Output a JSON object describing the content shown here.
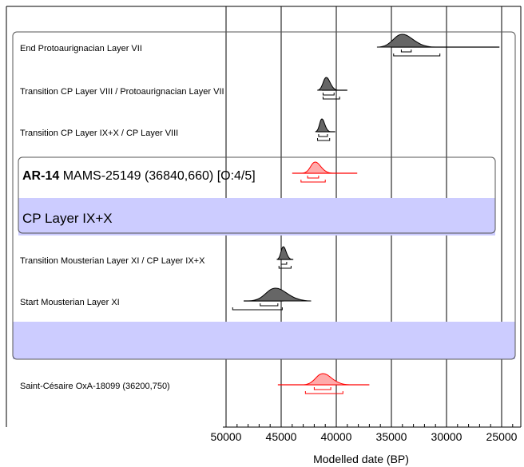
{
  "chart_data": {
    "type": "oxcal-multiplot",
    "xlabel": "Modelled date (BP)",
    "x_ticks": [
      "50000",
      "45000",
      "40000",
      "35000",
      "30000",
      "25000"
    ],
    "x_tick_values": [
      50000,
      45000,
      40000,
      35000,
      30000,
      25000
    ],
    "xlim": [
      50000,
      24000
    ],
    "axis_direction": "descending",
    "colors": {
      "prior": "#000000",
      "posterior_fill": "#666666",
      "highlight": "#ff0000",
      "highlight_fill": "#ffaaaa",
      "band": "#ccccff",
      "frame": "#555555"
    },
    "rows": [
      {
        "label": "End Protoaurignacian Layer VII",
        "kind": "boundary",
        "peak": 34000,
        "tail_from": 35000,
        "tail_to": 25200,
        "range68": [
          34100,
          33200
        ],
        "range95": [
          34800,
          30600
        ]
      },
      {
        "label": "Transition CP Layer VIII / Protoaurignacian Layer VII",
        "kind": "boundary",
        "peak": 40900,
        "tail_from": 41300,
        "tail_to": 39000,
        "range68": [
          41200,
          40200
        ],
        "range95": [
          41200,
          39700
        ]
      },
      {
        "label": "Transition CP Layer IX+X / CP Layer VIII",
        "kind": "boundary",
        "peak": 41300,
        "tail_from": 41700,
        "tail_to": 40100,
        "range68": [
          41600,
          40800
        ],
        "range95": [
          41700,
          40600
        ]
      },
      {
        "label_bold": "AR-14",
        "label": "MAMS-25149 (36840,660) [O:4/5]",
        "kind": "date-highlight",
        "peak": 41900,
        "tail_from": 44000,
        "tail_to": 38100,
        "range68": [
          42600,
          41600
        ],
        "range95": [
          43200,
          41000
        ]
      },
      {
        "label": "CP Layer IX+X",
        "kind": "phase-band"
      },
      {
        "label": "Transition Mousterian Layer XI / CP Layer IX+X",
        "kind": "boundary",
        "peak": 44800,
        "tail_from": 45300,
        "tail_to": 43900,
        "range68": [
          45000,
          44500
        ],
        "range95": [
          45200,
          44100
        ]
      },
      {
        "label": "Start Mousterian Layer XI",
        "kind": "boundary",
        "peak": 45500,
        "tail_from": 48400,
        "tail_to": 44800,
        "range68": [
          46900,
          45300
        ],
        "range95": [
          49400,
          44900
        ]
      },
      {
        "label": "",
        "kind": "phase-band"
      },
      {
        "label": "Saint-Césaire OxA-18099 (36200,750)",
        "kind": "date-highlight",
        "peak": 41200,
        "tail_from": 45300,
        "tail_to": 37000,
        "range68": [
          42000,
          40500
        ],
        "range95": [
          42800,
          39400
        ]
      }
    ]
  }
}
